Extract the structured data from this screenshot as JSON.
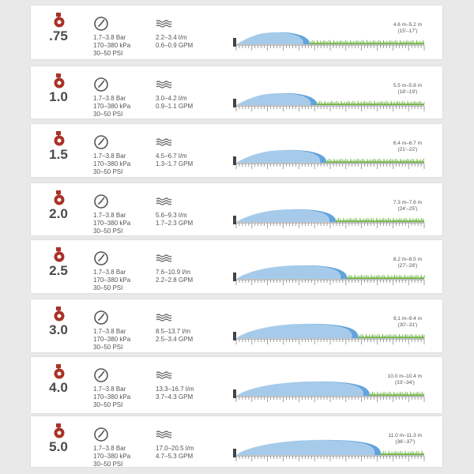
{
  "colors": {
    "nozzle": "#a93226",
    "water": "#a6cbea",
    "water_edge": "#62a3dc",
    "grass": "#6cb33f",
    "text": "#555555",
    "size_text": "#4a4a4a"
  },
  "icons": {
    "nozzle": "nozzle-icon",
    "pressure": "pressure-gauge-icon",
    "flow": "flow-waves-icon"
  },
  "nozzles": [
    {
      "size": ".75",
      "pressure": [
        "1.7–3.8 Bar",
        "170–380 kPa",
        "30–50 PSI"
      ],
      "flow": [
        "2.2–3.4 l/m",
        "0.6–0.9 GPM"
      ],
      "radius_m": "4.6 m–5.2 m",
      "radius_ft": "(15'–17')",
      "reach": 0.38
    },
    {
      "size": "1.0",
      "pressure": [
        "1.7–3.8 Bar",
        "170–380 kPa",
        "30–50 PSI"
      ],
      "flow": [
        "3.0–4.2 l/m",
        "0.9–1.1 GPM"
      ],
      "radius_m": "5.5 m–5.8 m",
      "radius_ft": "(18'–19')",
      "reach": 0.42
    },
    {
      "size": "1.5",
      "pressure": [
        "1.7–3.8 Bar",
        "170–380 kPa",
        "30–50 PSI"
      ],
      "flow": [
        "4.5–6.7 l/m",
        "1.3–1.7 GPM"
      ],
      "radius_m": "6.4 m–6.7 m",
      "radius_ft": "(21'–22')",
      "reach": 0.47
    },
    {
      "size": "2.0",
      "pressure": [
        "1.7–3.8 Bar",
        "170–380 kPa",
        "30–50 PSI"
      ],
      "flow": [
        "5.6–9.3 l/m",
        "1.7–2.3 GPM"
      ],
      "radius_m": "7.3 m–7.6 m",
      "radius_ft": "(24'–25')",
      "reach": 0.52
    },
    {
      "size": "2.5",
      "pressure": [
        "1.7–3.8 Bar",
        "170–380 kPa",
        "30–50 PSI"
      ],
      "flow": [
        "7.6–10.9 l/m",
        "2.2–2.8 GPM"
      ],
      "radius_m": "8.2 m–8.5 m",
      "radius_ft": "(27'–28')",
      "reach": 0.58
    },
    {
      "size": "3.0",
      "pressure": [
        "1.7–3.8 Bar",
        "170–380 kPa",
        "30–50 PSI"
      ],
      "flow": [
        "8.5–13.7 l/m",
        "2.5–3.4 GPM"
      ],
      "radius_m": "9.1 m–9.4 m",
      "radius_ft": "(30'–31')",
      "reach": 0.64
    },
    {
      "size": "4.0",
      "pressure": [
        "1.7–3.8 Bar",
        "170–380 kPa",
        "30–50 PSI"
      ],
      "flow": [
        "13.3–16.7 l/m",
        "3.7–4.3 GPM"
      ],
      "radius_m": "10.0 m–10.4 m",
      "radius_ft": "(33'–34')",
      "reach": 0.7
    },
    {
      "size": "5.0",
      "pressure": [
        "1.7–3.8 Bar",
        "170–380 kPa",
        "30–50 PSI"
      ],
      "flow": [
        "17.0–20.5 l/m",
        "4.7–5.3 GPM"
      ],
      "radius_m": "11.0 m–11.3 m",
      "radius_ft": "(36'–37')",
      "reach": 0.76
    }
  ]
}
